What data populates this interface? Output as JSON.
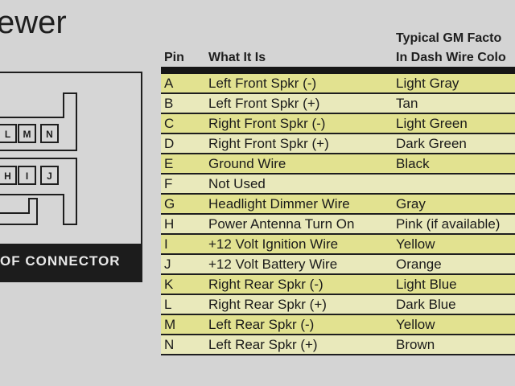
{
  "title": "ewer",
  "connector": {
    "pins_top": [
      "L",
      "M",
      "N"
    ],
    "pins_bottom": [
      "H",
      "I",
      "J"
    ],
    "label": "OF CONNECTOR"
  },
  "table": {
    "headers": {
      "pin": "Pin",
      "what": "What It Is",
      "color_line1": "Typical GM Facto",
      "color_line2": "In Dash Wire Colo"
    },
    "row_colors": [
      "#e2e290",
      "#e9e9bb"
    ],
    "rows": [
      [
        "A",
        "Left Front Spkr (-)",
        "Light Gray"
      ],
      [
        "B",
        "Left Front Spkr (+)",
        "Tan"
      ],
      [
        "C",
        "Right Front Spkr (-)",
        "Light Green"
      ],
      [
        "D",
        "Right Front Spkr (+)",
        "Dark Green"
      ],
      [
        "E",
        "Ground Wire",
        "Black"
      ],
      [
        "F",
        "Not Used",
        ""
      ],
      [
        "G",
        "Headlight Dimmer Wire",
        "Gray"
      ],
      [
        "H",
        "Power Antenna Turn On",
        "Pink (if available)"
      ],
      [
        "I",
        "+12 Volt Ignition Wire",
        "Yellow"
      ],
      [
        "J",
        "+12 Volt Battery Wire",
        "Orange"
      ],
      [
        "K",
        "Right Rear Spkr (-)",
        "Light Blue"
      ],
      [
        "L",
        "Right Rear Spkr (+)",
        "Dark Blue"
      ],
      [
        "M",
        "Left Rear Spkr (-)",
        "Yellow"
      ],
      [
        "N",
        "Left Rear Spkr (+)",
        "Brown"
      ]
    ]
  }
}
